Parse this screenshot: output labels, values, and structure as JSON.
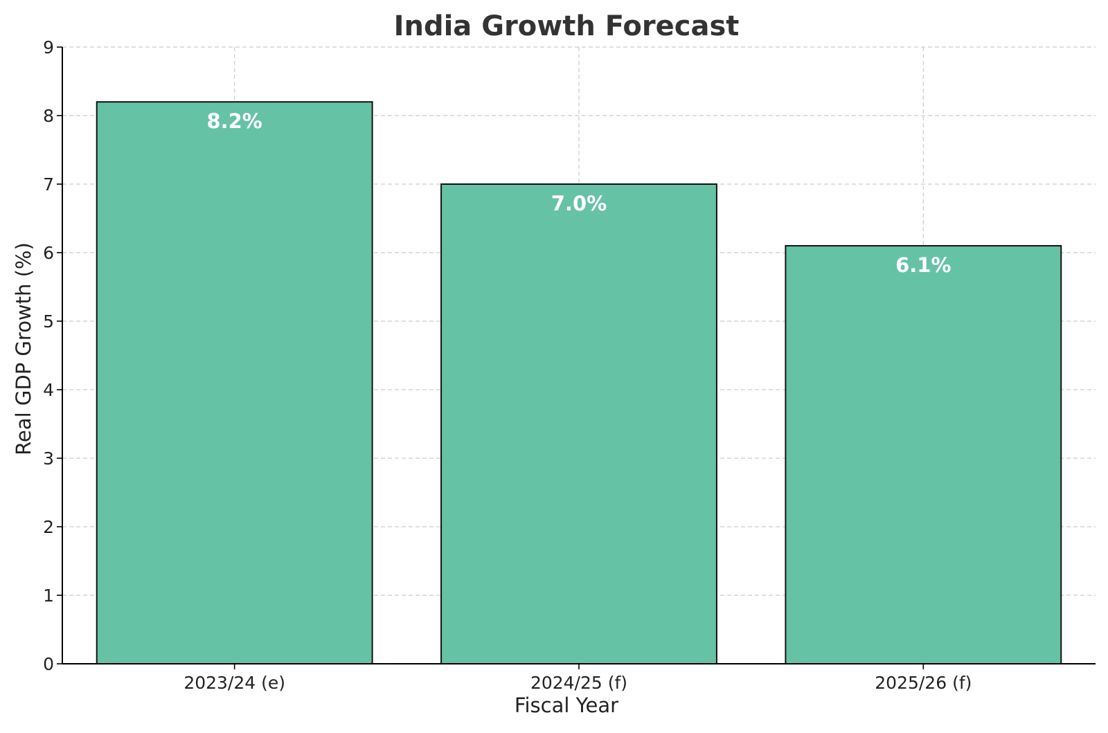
{
  "chart_data": {
    "type": "bar",
    "title": "India Growth Forecast",
    "xlabel": "Fiscal Year",
    "ylabel": "Real GDP Growth (%)",
    "categories": [
      "2023/24 (e)",
      "2024/25 (f)",
      "2025/26 (f)"
    ],
    "values": [
      8.2,
      7.0,
      6.1
    ],
    "data_labels": [
      "8.2%",
      "7.0%",
      "6.1%"
    ],
    "ylim": [
      0,
      9
    ],
    "yticks": [
      0,
      1,
      2,
      3,
      4,
      5,
      6,
      7,
      8,
      9
    ],
    "grid": true,
    "legend": "none",
    "colors": {
      "bar": "#66c2a5",
      "bar_edge": "#111111",
      "data_label": "#ffffff",
      "title": "#333333",
      "grid": "#cccccc"
    }
  }
}
